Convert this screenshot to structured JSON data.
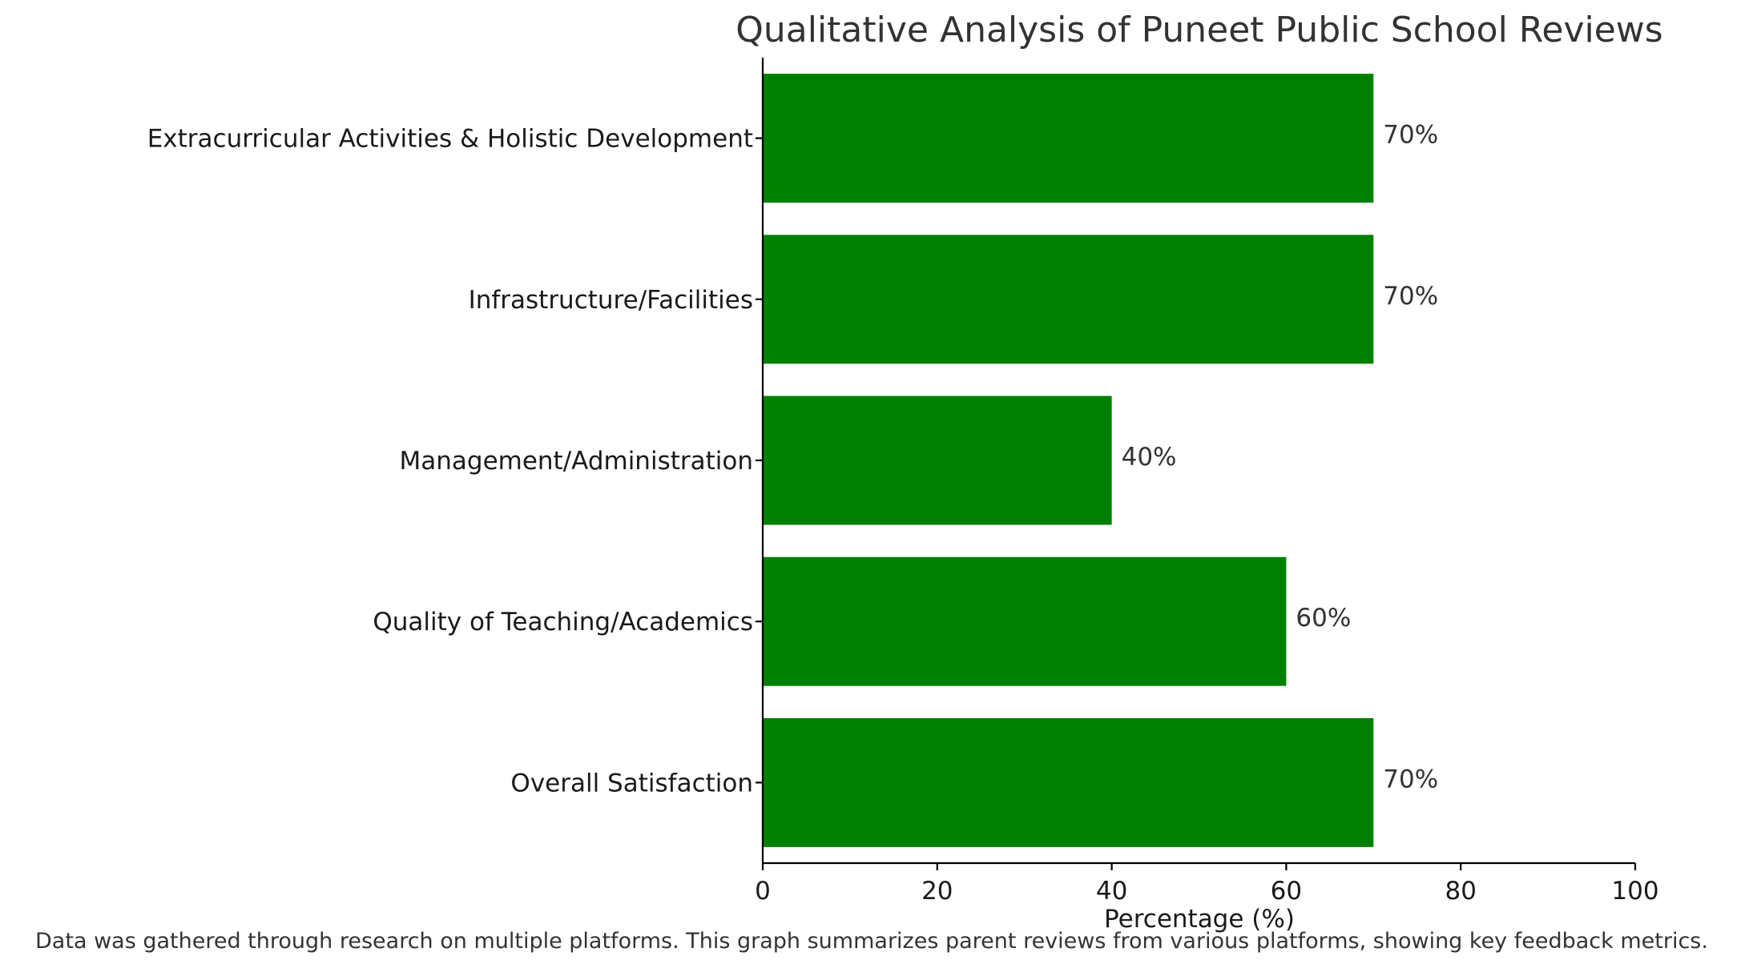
{
  "chart_data": {
    "type": "bar",
    "orientation": "horizontal",
    "title": "Qualitative Analysis of Puneet Public School Reviews",
    "xlabel": "Percentage (%)",
    "ylabel": "",
    "xlim": [
      0,
      100
    ],
    "x_ticks": [
      0,
      20,
      40,
      60,
      80,
      100
    ],
    "categories": [
      "Extracurricular Activities & Holistic Development",
      "Infrastructure/Facilities",
      "Management/Administration",
      "Quality of Teaching/Academics",
      "Overall Satisfaction"
    ],
    "values": [
      70,
      70,
      40,
      60,
      70
    ],
    "value_labels": [
      "70%",
      "70%",
      "40%",
      "60%",
      "70%"
    ],
    "bar_color": "#008000",
    "grid": false,
    "legend": "none",
    "footnote": "Data was gathered through research on multiple platforms. This graph summarizes parent reviews from various platforms, showing key feedback metrics."
  }
}
